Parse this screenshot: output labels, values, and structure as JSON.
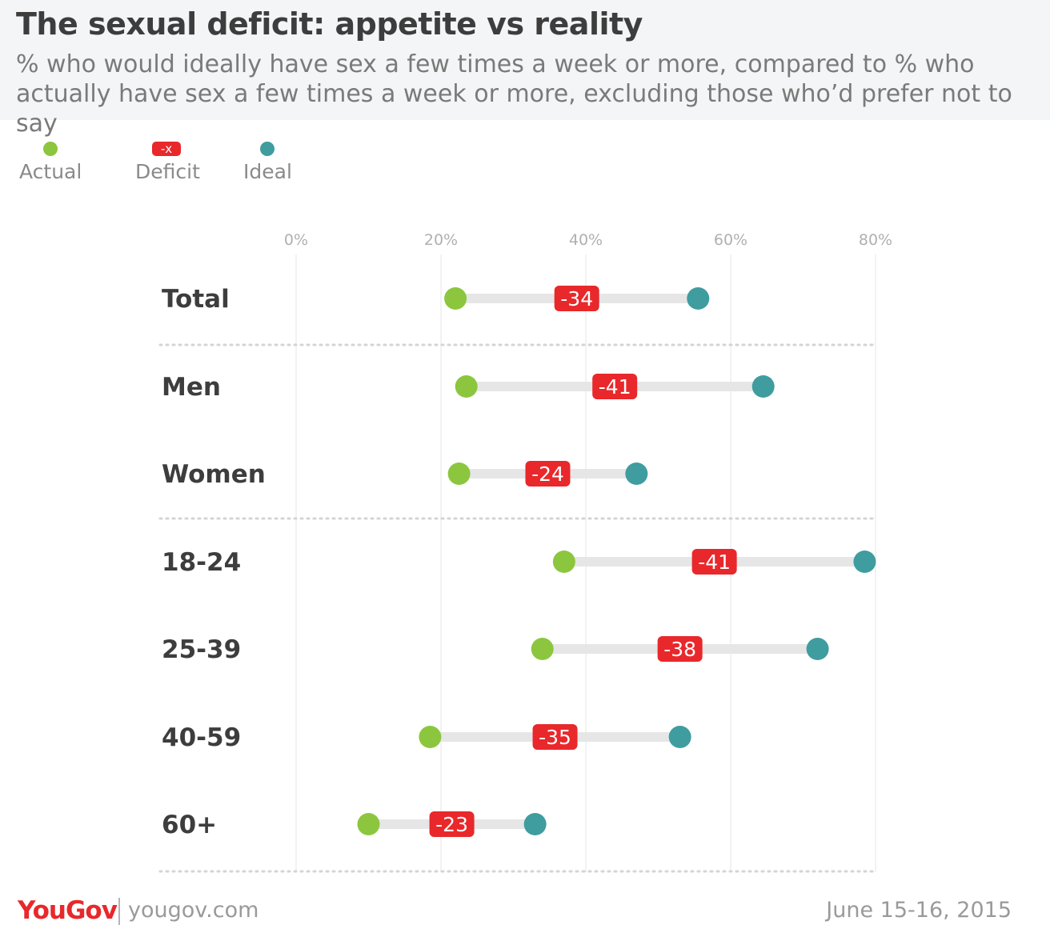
{
  "header": {
    "title": "The sexual deficit: appetite vs reality",
    "subtitle": "% who would ideally have sex a few times a week or more, compared to % who actually have sex a few times a week or more, excluding those who’d prefer not to say"
  },
  "legend": {
    "actual": "Actual",
    "deficit_marker": "-x",
    "deficit": "Deficit",
    "ideal": "Ideal"
  },
  "colors": {
    "actual": "#8cc63f",
    "ideal": "#3f9c9f",
    "deficit": "#e8282b",
    "connector": "#e6e6e6"
  },
  "footer": {
    "brand": "YouGov",
    "site": "yougov.com",
    "date": "June 15-16, 2015"
  },
  "chart_data": {
    "type": "dumbbell",
    "xlim": [
      0,
      80
    ],
    "x_ticks": [
      "0%",
      "20%",
      "40%",
      "60%",
      "80%"
    ],
    "x_tick_values": [
      0,
      20,
      40,
      60,
      80
    ],
    "categories": [
      "Total",
      "Men",
      "Women",
      "18-24",
      "25-39",
      "40-59",
      "60+"
    ],
    "groups": [
      [
        "Total"
      ],
      [
        "Men",
        "Women"
      ],
      [
        "18-24",
        "25-39",
        "40-59",
        "60+"
      ]
    ],
    "series": [
      {
        "name": "Actual",
        "values": [
          22,
          23.5,
          22.5,
          37,
          34,
          18.5,
          10
        ]
      },
      {
        "name": "Ideal",
        "values": [
          55.5,
          64.5,
          47,
          78.5,
          72,
          53,
          33
        ]
      }
    ],
    "deficit_labels": [
      "-34",
      "-41",
      "-24",
      "-41",
      "-38",
      "-35",
      "-23"
    ]
  }
}
